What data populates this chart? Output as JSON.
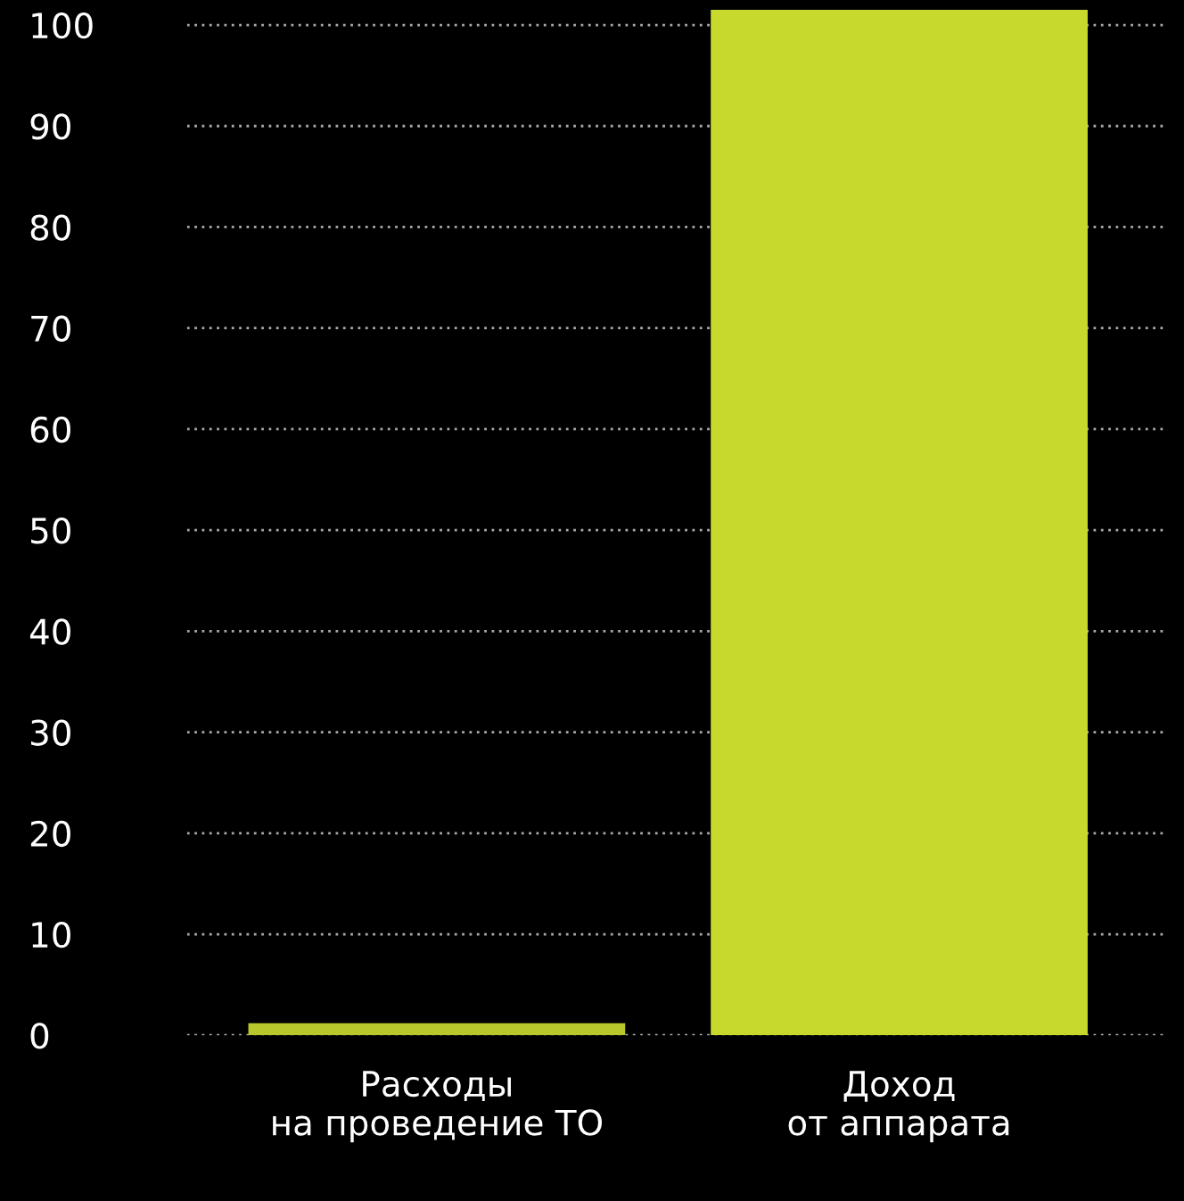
{
  "chart_data": {
    "type": "bar",
    "categories": [
      "Расходы\nна проведение ТО",
      "Доход\nот аппарата"
    ],
    "values": [
      1.2,
      101.5
    ],
    "colors": [
      "#b8c82c",
      "#c8d92e"
    ],
    "ylim": [
      0,
      102
    ],
    "yticks": [
      0,
      10,
      20,
      30,
      40,
      50,
      60,
      70,
      80,
      90,
      100
    ],
    "grid": "y",
    "legend": false
  }
}
